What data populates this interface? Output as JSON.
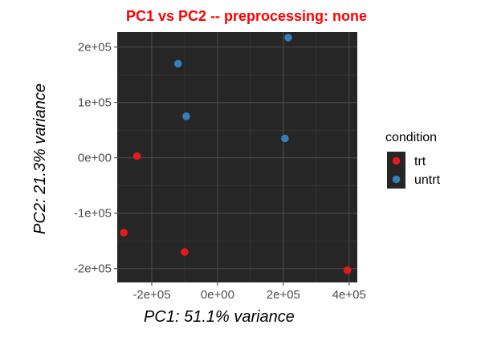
{
  "chart_data": {
    "type": "scatter",
    "title": "PC1 vs PC2 -- preprocessing: none",
    "xlabel": "PC1: 51.1% variance",
    "ylabel": "PC2: 21.3% variance",
    "xlim": [
      -305000,
      425000
    ],
    "ylim": [
      -225000,
      227000
    ],
    "x_ticks": [
      {
        "value": -200000,
        "label": "-2e+05"
      },
      {
        "value": 0,
        "label": "0e+00"
      },
      {
        "value": 200000,
        "label": "2e+05"
      },
      {
        "value": 400000,
        "label": "4e+05"
      }
    ],
    "y_ticks": [
      {
        "value": 200000,
        "label": "2e+05"
      },
      {
        "value": 100000,
        "label": "1e+05"
      },
      {
        "value": 0,
        "label": "0e+00"
      },
      {
        "value": -100000,
        "label": "-1e+05"
      },
      {
        "value": -200000,
        "label": "-2e+05"
      }
    ],
    "grid": true,
    "legend": {
      "title": "condition",
      "placement": "right"
    },
    "series": [
      {
        "name": "trt",
        "color": "#e41a1c",
        "points": [
          {
            "x": -245000,
            "y": 3000
          },
          {
            "x": -285000,
            "y": -135000
          },
          {
            "x": -100000,
            "y": -170000
          },
          {
            "x": 395000,
            "y": -203000
          }
        ]
      },
      {
        "name": "untrt",
        "color": "#377eb8",
        "points": [
          {
            "x": -120000,
            "y": 170000
          },
          {
            "x": -95000,
            "y": 75000
          },
          {
            "x": 215000,
            "y": 217000
          },
          {
            "x": 205000,
            "y": 35000
          }
        ]
      }
    ]
  }
}
